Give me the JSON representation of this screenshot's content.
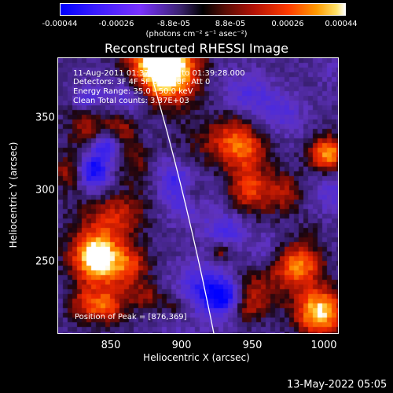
{
  "colorbar": {
    "ticks": [
      "-0.00044",
      "-0.00026",
      "-8.8e-05",
      "8.8e-05",
      "0.00026",
      "0.00044"
    ],
    "unit_text": "(photons cm⁻² s⁻¹ asec⁻²)"
  },
  "title": "Reconstructed RHESSI Image",
  "info": {
    "time": "11-Aug-2011 01:37:12.000 to 01:39:28.000",
    "detectors": "Detectors: 3F 4F 5F 6F 7F 8F, Att 0",
    "energy": "Energy Range: 35.0 - 50.0 keV",
    "clean": "Clean     Total counts: 3.37E+03",
    "peak": "Position of Peak = [876,369]"
  },
  "axes": {
    "xlabel": "Heliocentric X (arcsec)",
    "ylabel": "Heliocentric Y (arcsec)",
    "xticks": [
      "850",
      "900",
      "950",
      "1000"
    ],
    "yticks": [
      "350",
      "300",
      "250"
    ],
    "xlim": [
      814,
      1010
    ],
    "ylim": [
      200,
      392
    ]
  },
  "footer": "13-May-2022 05:05"
}
